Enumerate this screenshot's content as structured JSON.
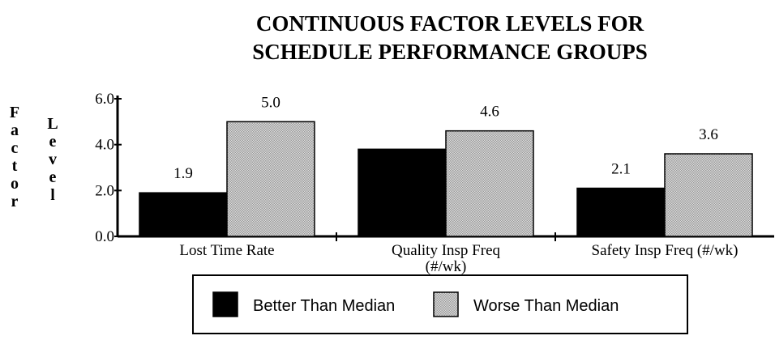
{
  "chart_data": {
    "type": "bar",
    "title": [
      "CONTINUOUS FACTOR LEVELS FOR",
      "SCHEDULE PERFORMANCE GROUPS"
    ],
    "ylabel": [
      "Factor",
      "Level"
    ],
    "categories": [
      "Lost Time Rate",
      "Quality Insp Freq (#/wk)",
      "Safety Insp Freq (#/wk)"
    ],
    "series": [
      {
        "name": "Better Than Median",
        "color": "#000000",
        "pattern": "solid",
        "values": [
          1.9,
          3.8,
          2.1
        ],
        "value_labels": [
          "1.9",
          "",
          "2.1"
        ]
      },
      {
        "name": "Worse Than Median",
        "color": "#9a9a9a",
        "pattern": "dots",
        "values": [
          5.0,
          4.6,
          3.6
        ],
        "value_labels": [
          "5.0",
          "4.6",
          "3.6"
        ]
      }
    ],
    "ylim": [
      0,
      6
    ],
    "yticks": [
      {
        "value": 0,
        "label": "0.0"
      },
      {
        "value": 2,
        "label": "2.0"
      },
      {
        "value": 4,
        "label": "4.0"
      },
      {
        "value": 6,
        "label": "6.0"
      }
    ],
    "legend": "bottom"
  }
}
